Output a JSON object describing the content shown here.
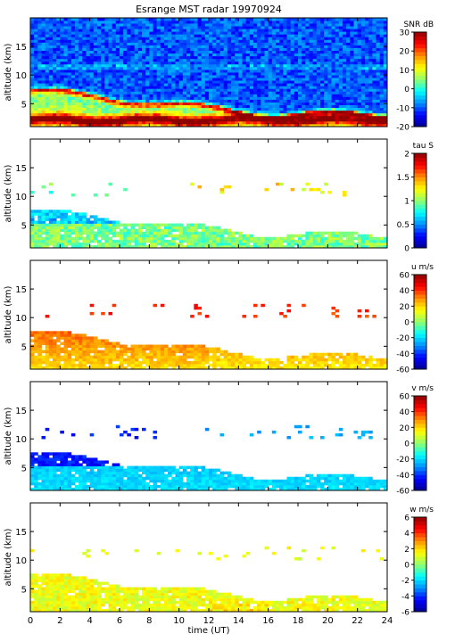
{
  "title": "Esrange MST radar 19970924",
  "chart_data": [
    {
      "type": "heatmap",
      "ylabel": "altitude (km)",
      "xlim": [
        0,
        24
      ],
      "ylim": [
        1,
        20
      ],
      "yticks": [
        5,
        10,
        15
      ],
      "colorbar": {
        "label": "SNR dB",
        "range": [
          -20,
          30
        ],
        "ticks": [
          -20,
          -10,
          0,
          10,
          20,
          30
        ],
        "colors": [
          "#00008f",
          "#0000ff",
          "#008fff",
          "#00ffff",
          "#8fff70",
          "#ffff00",
          "#ff8f00",
          "#ff0000",
          "#8f0000"
        ]
      },
      "field": "snr"
    },
    {
      "type": "heatmap",
      "ylabel": "altitude (km)",
      "xlim": [
        0,
        24
      ],
      "ylim": [
        1,
        20
      ],
      "yticks": [
        5,
        10,
        15
      ],
      "colorbar": {
        "label": "tau S",
        "range": [
          0,
          2
        ],
        "ticks": [
          0,
          0.5,
          1,
          1.5,
          2
        ],
        "colors": [
          "#00008f",
          "#0000ff",
          "#008fff",
          "#00ffff",
          "#8fff70",
          "#ffff00",
          "#ff8f00",
          "#ff0000",
          "#8f0000"
        ]
      },
      "field": "tau"
    },
    {
      "type": "heatmap",
      "ylabel": "altitude (km)",
      "xlim": [
        0,
        24
      ],
      "ylim": [
        1,
        20
      ],
      "yticks": [
        5,
        10,
        15
      ],
      "colorbar": {
        "label": "u m/s",
        "range": [
          -60,
          60
        ],
        "ticks": [
          -60,
          -40,
          -20,
          0,
          20,
          40,
          60
        ],
        "colors": [
          "#00008f",
          "#0000ff",
          "#008fff",
          "#00ffff",
          "#8fff70",
          "#ffff00",
          "#ff8f00",
          "#ff0000",
          "#8f0000"
        ]
      },
      "field": "u"
    },
    {
      "type": "heatmap",
      "ylabel": "altitude (km)",
      "xlim": [
        0,
        24
      ],
      "ylim": [
        1,
        20
      ],
      "yticks": [
        5,
        10,
        15
      ],
      "colorbar": {
        "label": "v m/s",
        "range": [
          -60,
          60
        ],
        "ticks": [
          -60,
          -40,
          -20,
          0,
          20,
          40,
          60
        ],
        "colors": [
          "#00008f",
          "#0000ff",
          "#008fff",
          "#00ffff",
          "#8fff70",
          "#ffff00",
          "#ff8f00",
          "#ff0000",
          "#8f0000"
        ]
      },
      "field": "v"
    },
    {
      "type": "heatmap",
      "ylabel": "altitude (km)",
      "xlabel": "time (UT)",
      "xlim": [
        0,
        24
      ],
      "ylim": [
        1,
        20
      ],
      "yticks": [
        5,
        10,
        15
      ],
      "xticks": [
        0,
        2,
        4,
        6,
        8,
        10,
        12,
        14,
        16,
        18,
        20,
        22,
        24
      ],
      "colorbar": {
        "label": "w m/s",
        "range": [
          -6,
          6
        ],
        "ticks": [
          -6,
          -4,
          -2,
          0,
          2,
          4,
          6
        ],
        "colors": [
          "#00008f",
          "#0000ff",
          "#008fff",
          "#00ffff",
          "#8fff70",
          "#ffff00",
          "#ff8f00",
          "#ff0000",
          "#8f0000"
        ]
      },
      "field": "w"
    }
  ]
}
